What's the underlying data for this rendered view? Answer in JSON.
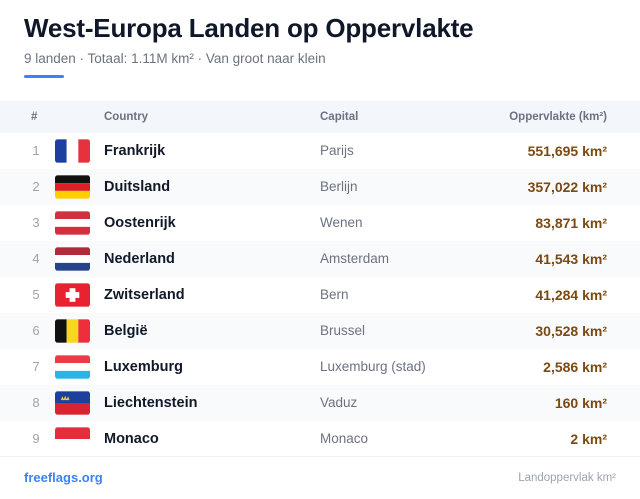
{
  "header": {
    "title": "West-Europa Landen op Oppervlakte",
    "subtitle": "9 landen · Totaal: 1.11M km² · Van groot naar klein"
  },
  "table": {
    "columns": {
      "num": "#",
      "country": "Country",
      "capital": "Capital",
      "area": "Oppervlakte (km²)"
    },
    "rows": [
      {
        "rank": "1",
        "country": "Frankrijk",
        "capital": "Parijs",
        "area": "551,695 km²",
        "flag_icon": "france-flag-icon"
      },
      {
        "rank": "2",
        "country": "Duitsland",
        "capital": "Berlijn",
        "area": "357,022 km²",
        "flag_icon": "germany-flag-icon"
      },
      {
        "rank": "3",
        "country": "Oostenrijk",
        "capital": "Wenen",
        "area": "83,871 km²",
        "flag_icon": "austria-flag-icon"
      },
      {
        "rank": "4",
        "country": "Nederland",
        "capital": "Amsterdam",
        "area": "41,543 km²",
        "flag_icon": "netherlands-flag-icon"
      },
      {
        "rank": "5",
        "country": "Zwitserland",
        "capital": "Bern",
        "area": "41,284 km²",
        "flag_icon": "switzerland-flag-icon"
      },
      {
        "rank": "6",
        "country": "België",
        "capital": "Brussel",
        "area": "30,528 km²",
        "flag_icon": "belgium-flag-icon"
      },
      {
        "rank": "7",
        "country": "Luxemburg",
        "capital": "Luxemburg (stad)",
        "area": "2,586 km²",
        "flag_icon": "luxembourg-flag-icon"
      },
      {
        "rank": "8",
        "country": "Liechtenstein",
        "capital": "Vaduz",
        "area": "160 km²",
        "flag_icon": "liechtenstein-flag-icon"
      },
      {
        "rank": "9",
        "country": "Monaco",
        "capital": "Monaco",
        "area": "2 km²",
        "flag_icon": "monaco-flag-icon"
      }
    ]
  },
  "footer": {
    "source": "freeflags.org",
    "note": "Landoppervlak km²"
  },
  "colors": {
    "accent": "#3b82f6",
    "area_text": "#7a4a12",
    "header_bg": "#f3f6fb",
    "alt_row_bg": "#f8fafc"
  }
}
